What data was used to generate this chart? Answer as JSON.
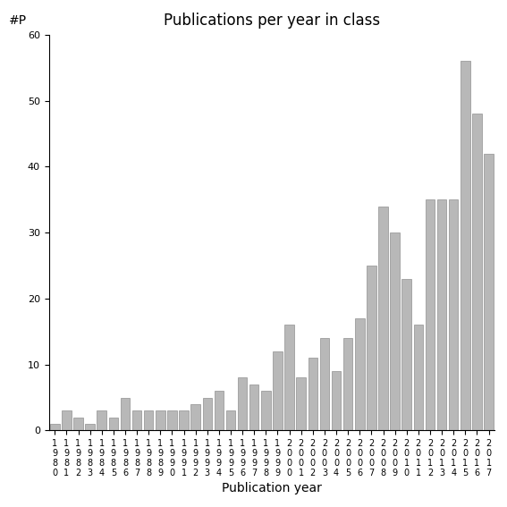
{
  "title": "Publications per year in class",
  "xlabel": "Publication year",
  "ylabel": "#P",
  "ylim": [
    0,
    60
  ],
  "yticks": [
    0,
    10,
    20,
    30,
    40,
    50,
    60
  ],
  "bar_color": "#b8b8b8",
  "bar_edgecolor": "#909090",
  "years": [
    1980,
    1981,
    1982,
    1983,
    1984,
    1985,
    1986,
    1987,
    1988,
    1989,
    1990,
    1991,
    1992,
    1993,
    1994,
    1995,
    1996,
    1997,
    1998,
    1999,
    2000,
    2001,
    2002,
    2003,
    2004,
    2005,
    2006,
    2007,
    2008,
    2009,
    2010,
    2011,
    2012,
    2013,
    2014,
    2015,
    2016,
    2017
  ],
  "values": [
    1,
    3,
    2,
    1,
    3,
    2,
    5,
    3,
    3,
    3,
    3,
    3,
    4,
    5,
    6,
    3,
    8,
    7,
    6,
    12,
    16,
    8,
    11,
    14,
    9,
    14,
    17,
    25,
    34,
    30,
    23,
    16,
    35,
    35,
    35,
    56,
    48,
    42
  ],
  "background_color": "#ffffff",
  "title_fontsize": 12,
  "tick_fontsize": 7,
  "ylabel_fontsize": 10,
  "xlabel_fontsize": 10
}
